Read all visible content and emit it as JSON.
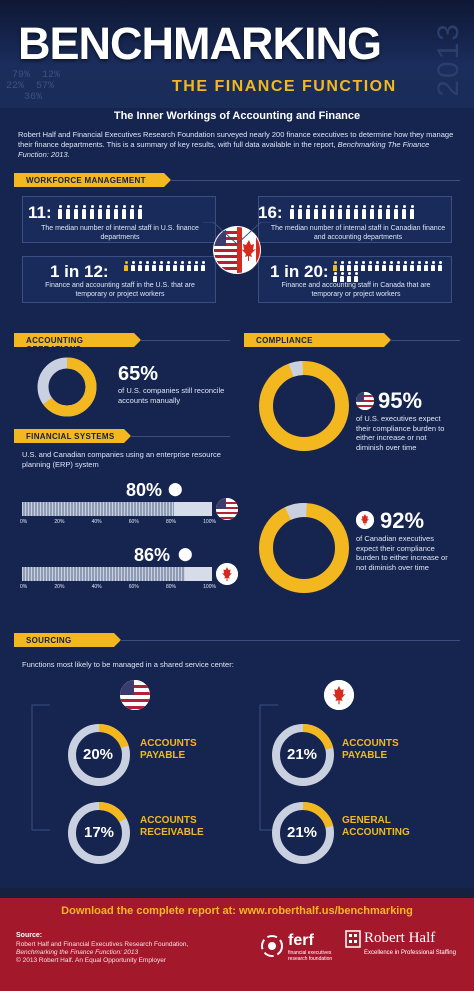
{
  "header": {
    "title": "BENCHMARKING",
    "subtitle": "THE FINANCE FUNCTION",
    "year": "2013",
    "inner_heading": "The Inner Workings of Accounting and Finance"
  },
  "intro": {
    "text_before": "Robert Half and Financial Executives Research Foundation surveyed nearly 200 finance executives to determine how they manage their finance departments. This is a summary of key results, with full data available in the report, ",
    "report_title": "Benchmarking The Finance Function: 2013",
    "text_after": "."
  },
  "colors": {
    "accent": "#f3b820",
    "background": "#162550",
    "footer": "#a4182b"
  },
  "workforce": {
    "heading": "WORKFORCE MANAGEMENT",
    "us_staff_num": "11:",
    "us_staff_desc": "The median number of internal staff in U.S. finance departments",
    "ca_staff_num": "16:",
    "ca_staff_desc": "The median number of internal staff in Canadian finance and accounting departments",
    "us_temp_num": "1 in 12:",
    "us_temp_desc": "Finance and accounting staff in the U.S. that are temporary or project workers",
    "ca_temp_num": "1 in 20:",
    "ca_temp_desc": "Finance and accounting staff in Canada that are temporary or project workers"
  },
  "accounting": {
    "heading": "ACCOUNTING OPERATIONS",
    "pct": "65%",
    "desc": "of U.S. companies still reconcile accounts manually"
  },
  "compliance": {
    "heading": "COMPLIANCE",
    "us_pct": "95%",
    "us_desc": "of U.S. executives expect their compliance burden to either increase or not diminish over time",
    "ca_pct": "92%",
    "ca_desc": "of Canadian executives expect their compliance burden to either increase or not diminish over time"
  },
  "financial": {
    "heading": "FINANCIAL SYSTEMS",
    "desc": "U.S. and Canadian companies using an enterprise resource planning (ERP) system",
    "us_pct": "80%",
    "ca_pct": "86%",
    "ticks": [
      "0%",
      "20%",
      "40%",
      "60%",
      "80%",
      "100%"
    ]
  },
  "sourcing": {
    "heading": "SOURCING",
    "desc": "Functions most likely to be managed in a shared service center:",
    "us_items": [
      {
        "pct": "20%",
        "label_1": "ACCOUNTS",
        "label_2": "PAYABLE"
      },
      {
        "pct": "17%",
        "label_1": "ACCOUNTS",
        "label_2": "RECEIVABLE"
      }
    ],
    "ca_items": [
      {
        "pct": "21%",
        "label_1": "ACCOUNTS",
        "label_2": "PAYABLE"
      },
      {
        "pct": "21%",
        "label_1": "GENERAL",
        "label_2": "ACCOUNTING"
      }
    ]
  },
  "footer": {
    "download": "Download the complete report at: www.roberthalf.us/benchmarking",
    "source_title": "Source:",
    "source_line1": "Robert Half and Financial Executives Research Foundation,",
    "source_line2": "Benchmarking the Finance Function: 2013",
    "source_line3": "© 2013 Robert Half. An Equal Opportunity Employer",
    "ferf_name": "ferf",
    "ferf_sub1": "financial executives",
    "ferf_sub2": "research foundation",
    "rh_name": "Robert Half",
    "rh_tagline": "Excellence in Professional Staffing"
  }
}
